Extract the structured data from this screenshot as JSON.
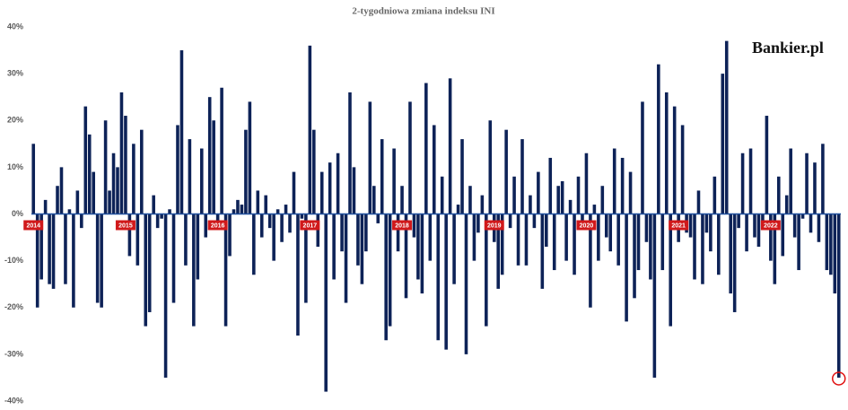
{
  "chart_data": {
    "type": "bar",
    "title": "2-tygodniowa zmiana indeksu INI",
    "brand": "Bankier.pl",
    "color": "#0d2257",
    "ylim": [
      -40,
      40
    ],
    "yticks": [
      {
        "value": -40,
        "label": "-40%"
      },
      {
        "value": -30,
        "label": "-30%"
      },
      {
        "value": -20,
        "label": "-20%"
      },
      {
        "value": -10,
        "label": "-10%"
      },
      {
        "value": 0,
        "label": "0%"
      },
      {
        "value": 10,
        "label": "10%"
      },
      {
        "value": 20,
        "label": "20%"
      },
      {
        "value": 30,
        "label": "30%"
      },
      {
        "value": 40,
        "label": "40%"
      }
    ],
    "xlim": [
      0,
      202
    ],
    "xticks": [
      {
        "value": 0,
        "label": "2014"
      },
      {
        "value": 23,
        "label": "2015"
      },
      {
        "value": 46,
        "label": "2016"
      },
      {
        "value": 69,
        "label": "2017"
      },
      {
        "value": 92,
        "label": "2018"
      },
      {
        "value": 115,
        "label": "2019"
      },
      {
        "value": 138,
        "label": "2020"
      },
      {
        "value": 161,
        "label": "2021"
      },
      {
        "value": 184,
        "label": "2022"
      }
    ],
    "values": [
      15,
      -20,
      -14,
      3,
      -15,
      -16,
      6,
      10,
      -15,
      1,
      -20,
      5,
      -3,
      23,
      17,
      9,
      -19,
      -20,
      20,
      5,
      13,
      10,
      26,
      21,
      -9,
      15,
      -11,
      18,
      -24,
      -21,
      4,
      -3,
      -1,
      -35,
      1,
      -19,
      19,
      35,
      -11,
      16,
      -24,
      -14,
      14,
      -5,
      25,
      20,
      -3,
      27,
      -24,
      -9,
      1,
      3,
      2,
      18,
      24,
      -13,
      5,
      -5,
      4,
      -3,
      -10,
      1,
      -6,
      2,
      -4,
      9,
      -26,
      -1,
      -19,
      36,
      18,
      -7,
      9,
      -38,
      11,
      -14,
      13,
      -8,
      -19,
      26,
      10,
      -11,
      -15,
      -8,
      24,
      6,
      -2,
      16,
      -27,
      -24,
      14,
      -8,
      6,
      -18,
      24,
      -5,
      -14,
      -17,
      28,
      -10,
      19,
      -27,
      8,
      -29,
      29,
      -15,
      2,
      16,
      -30,
      6,
      -10,
      -4,
      4,
      -24,
      20,
      -6,
      -16,
      -13,
      18,
      -3,
      8,
      -11,
      16,
      -11,
      4,
      -3,
      9,
      -16,
      -7,
      12,
      -12,
      6,
      7,
      -10,
      3,
      -13,
      8,
      -3,
      13,
      -20,
      2,
      -10,
      6,
      -5,
      -8,
      14,
      -11,
      12,
      -23,
      9,
      -18,
      -12,
      24,
      -6,
      -14,
      -35,
      32,
      -12,
      26,
      -24,
      23,
      -6,
      19,
      -4,
      -5,
      -14,
      5,
      -15,
      -4,
      -8,
      8,
      -13,
      30,
      37,
      -17,
      -21,
      -3,
      13,
      -8,
      14,
      -5,
      -7,
      -2,
      21,
      -10,
      -15,
      8,
      -9,
      4,
      14,
      -5,
      -12,
      -1,
      13,
      -4,
      11,
      -6,
      15,
      -12,
      -13,
      -17,
      -35
    ]
  }
}
